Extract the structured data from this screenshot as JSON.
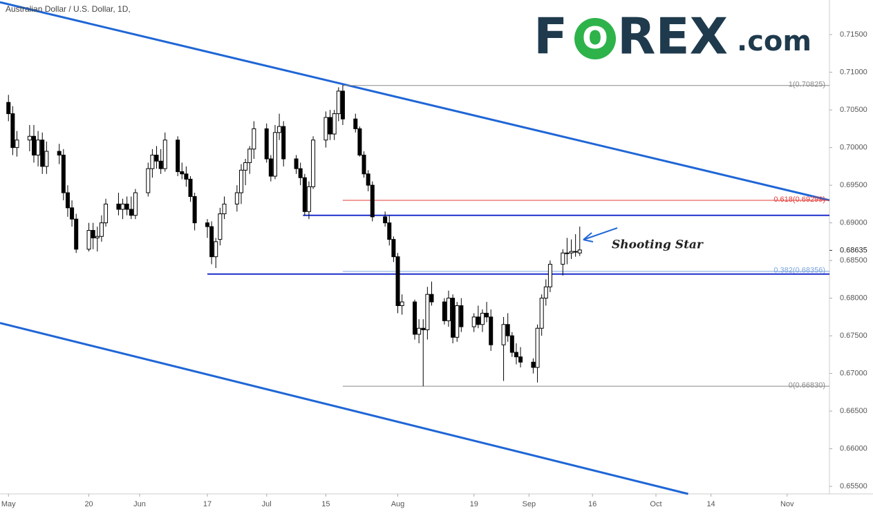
{
  "chart_data": {
    "type": "candlestick",
    "title": "Australian Dollar / U.S. Dollar, 1D,",
    "logo": [
      "F",
      "O",
      "REX",
      ".com"
    ],
    "annotation": "Shooting Star",
    "x": [
      0,
      1,
      2,
      5,
      6,
      7,
      8,
      9,
      12,
      13,
      14,
      15,
      16,
      19,
      20,
      21,
      22,
      23,
      26,
      27,
      28,
      29,
      30,
      33,
      34,
      35,
      36,
      37,
      40,
      41,
      42,
      43,
      44,
      47,
      48,
      49,
      50,
      51,
      54,
      55,
      56,
      57,
      58,
      61,
      62,
      63,
      64,
      65,
      68,
      69,
      70,
      71,
      72,
      75,
      76,
      77,
      78,
      79,
      82,
      83,
      84,
      85,
      86,
      89,
      90,
      91,
      92,
      93,
      96,
      97,
      98,
      99,
      100,
      103,
      104,
      105,
      106,
      107,
      110,
      111,
      112,
      113,
      114,
      117,
      118,
      119,
      120,
      121,
      124,
      125,
      126,
      127,
      128,
      131,
      132,
      133,
      134,
      135
    ],
    "open": [
      0.706,
      0.7045,
      0.7,
      0.701,
      0.7015,
      0.699,
      0.701,
      0.6975,
      0.6995,
      0.699,
      0.694,
      0.692,
      0.6905,
      0.6865,
      0.689,
      0.688,
      0.6882,
      0.69,
      0.6925,
      0.6918,
      0.6925,
      0.6918,
      0.691,
      0.694,
      0.6972,
      0.699,
      0.6982,
      0.6972,
      0.701,
      0.6968,
      0.6965,
      0.6958,
      0.6935,
      0.69,
      0.6895,
      0.6855,
      0.6878,
      0.6912,
      0.6925,
      0.694,
      0.697,
      0.698,
      0.6998,
      0.7025,
      0.6985,
      0.6962,
      0.702,
      0.7028,
      0.6985,
      0.6972,
      0.696,
      0.6915,
      0.6948,
      0.701,
      0.704,
      0.7018,
      0.7045,
      0.7075,
      0.7038,
      0.7025,
      0.699,
      0.6965,
      0.695,
      0.6908,
      0.69,
      0.6878,
      0.6855,
      0.679,
      0.6795,
      0.6752,
      0.676,
      0.6758,
      0.6805,
      0.6795,
      0.677,
      0.68,
      0.6748,
      0.679,
      0.6762,
      0.6775,
      0.6765,
      0.678,
      0.6775,
      0.6738,
      0.6765,
      0.675,
      0.6728,
      0.6722,
      0.6715,
      0.6708,
      0.676,
      0.68,
      0.6815,
      0.6845,
      0.686,
      0.686,
      0.6862,
      0.686
    ],
    "high": [
      0.707,
      0.7055,
      0.7022,
      0.703,
      0.703,
      0.7022,
      0.702,
      0.7008,
      0.7005,
      0.6998,
      0.695,
      0.693,
      0.6912,
      0.69,
      0.69,
      0.6895,
      0.691,
      0.6932,
      0.694,
      0.6932,
      0.6935,
      0.6935,
      0.6945,
      0.698,
      0.6998,
      0.7002,
      0.6998,
      0.702,
      0.7015,
      0.698,
      0.6975,
      0.6962,
      0.694,
      0.6905,
      0.6902,
      0.688,
      0.692,
      0.6935,
      0.695,
      0.6978,
      0.6985,
      0.7002,
      0.7035,
      0.7032,
      0.699,
      0.703,
      0.7045,
      0.7035,
      0.699,
      0.698,
      0.6965,
      0.6955,
      0.7015,
      0.7048,
      0.705,
      0.705,
      0.708,
      0.7083,
      0.7045,
      0.7028,
      0.6995,
      0.697,
      0.6955,
      0.6915,
      0.691,
      0.6882,
      0.686,
      0.6805,
      0.6798,
      0.6772,
      0.6772,
      0.6815,
      0.6822,
      0.68,
      0.681,
      0.6805,
      0.6795,
      0.68,
      0.678,
      0.679,
      0.6785,
      0.6795,
      0.6785,
      0.6775,
      0.678,
      0.6755,
      0.674,
      0.6735,
      0.672,
      0.6765,
      0.6805,
      0.6825,
      0.685,
      0.6865,
      0.688,
      0.6878,
      0.6885,
      0.6895
    ],
    "low": [
      0.7035,
      0.699,
      0.6988,
      0.6995,
      0.698,
      0.6975,
      0.6965,
      0.6965,
      0.6978,
      0.693,
      0.6908,
      0.6895,
      0.686,
      0.6862,
      0.6865,
      0.6862,
      0.6875,
      0.6895,
      0.691,
      0.6905,
      0.691,
      0.6905,
      0.6905,
      0.6935,
      0.696,
      0.6972,
      0.6965,
      0.6968,
      0.6962,
      0.6958,
      0.6948,
      0.6928,
      0.689,
      0.688,
      0.6845,
      0.684,
      0.687,
      0.6905,
      0.6915,
      0.6925,
      0.695,
      0.6965,
      0.6985,
      0.698,
      0.6955,
      0.6958,
      0.701,
      0.6975,
      0.6965,
      0.695,
      0.691,
      0.6905,
      0.6945,
      0.7,
      0.701,
      0.701,
      0.7035,
      0.703,
      0.702,
      0.6988,
      0.696,
      0.6942,
      0.6902,
      0.6895,
      0.687,
      0.6848,
      0.678,
      0.6778,
      0.6745,
      0.674,
      0.6683,
      0.6745,
      0.679,
      0.6765,
      0.6762,
      0.674,
      0.6742,
      0.6755,
      0.6755,
      0.676,
      0.6755,
      0.6768,
      0.673,
      0.669,
      0.6742,
      0.6722,
      0.6712,
      0.6708,
      0.67,
      0.6688,
      0.675,
      0.679,
      0.6808,
      0.683,
      0.6845,
      0.6852,
      0.6855,
      0.6856
    ],
    "close": [
      0.7045,
      0.7,
      0.701,
      0.7015,
      0.699,
      0.701,
      0.6975,
      0.6995,
      0.699,
      0.694,
      0.692,
      0.6905,
      0.6865,
      0.689,
      0.688,
      0.6882,
      0.69,
      0.6925,
      0.6918,
      0.6925,
      0.6918,
      0.691,
      0.694,
      0.6972,
      0.699,
      0.6982,
      0.6972,
      0.701,
      0.6968,
      0.6965,
      0.6958,
      0.6935,
      0.69,
      0.6895,
      0.6855,
      0.6875,
      0.6912,
      0.6925,
      0.694,
      0.697,
      0.698,
      0.6998,
      0.7025,
      0.6985,
      0.6962,
      0.702,
      0.7028,
      0.6985,
      0.6972,
      0.696,
      0.6915,
      0.6948,
      0.701,
      0.704,
      0.7018,
      0.7045,
      0.7075,
      0.7038,
      0.7025,
      0.699,
      0.6965,
      0.695,
      0.6908,
      0.69,
      0.6878,
      0.6855,
      0.679,
      0.6795,
      0.6752,
      0.676,
      0.6758,
      0.6805,
      0.6795,
      0.677,
      0.68,
      0.6748,
      0.679,
      0.6762,
      0.6775,
      0.6765,
      0.678,
      0.6775,
      0.6738,
      0.6765,
      0.675,
      0.6728,
      0.6722,
      0.6715,
      0.6708,
      0.676,
      0.68,
      0.6815,
      0.6845,
      0.686,
      0.686,
      0.6862,
      0.6862,
      0.6864
    ],
    "up_color": "#ffffff",
    "down_color": "#000000",
    "xlim": [
      -2,
      194
    ],
    "ylim": [
      0.654,
      0.7196
    ],
    "xticks": [
      {
        "value": 0,
        "label": "May"
      },
      {
        "value": 19,
        "label": "20"
      },
      {
        "value": 31,
        "label": "Jun"
      },
      {
        "value": 47,
        "label": "17"
      },
      {
        "value": 61,
        "label": "Jul"
      },
      {
        "value": 75,
        "label": "15"
      },
      {
        "value": 92,
        "label": "Aug"
      },
      {
        "value": 110,
        "label": "19"
      },
      {
        "value": 123,
        "label": "Sep"
      },
      {
        "value": 138,
        "label": "16"
      },
      {
        "value": 153,
        "label": "Oct"
      },
      {
        "value": 166,
        "label": "14"
      },
      {
        "value": 184,
        "label": "Nov"
      }
    ],
    "yticks": [
      {
        "value": 0.655,
        "label": "0.65500"
      },
      {
        "value": 0.66,
        "label": "0.66000"
      },
      {
        "value": 0.665,
        "label": "0.66500"
      },
      {
        "value": 0.67,
        "label": "0.67000"
      },
      {
        "value": 0.675,
        "label": "0.67500"
      },
      {
        "value": 0.68,
        "label": "0.68000"
      },
      {
        "value": 0.685,
        "label": "0.68500"
      },
      {
        "value": 0.69,
        "label": "0.69000"
      },
      {
        "value": 0.695,
        "label": "0.69500"
      },
      {
        "value": 0.7,
        "label": "0.70000"
      },
      {
        "value": 0.705,
        "label": "0.70500"
      },
      {
        "value": 0.71,
        "label": "0.71000"
      },
      {
        "value": 0.715,
        "label": "0.71500"
      }
    ],
    "last_price": 0.68635,
    "fib_start": 79,
    "fib_levels": [
      {
        "value": 0.70825,
        "label": "1(0.70825)",
        "color": "#888888"
      },
      {
        "value": 0.69299,
        "label": "0.618(0.69299)",
        "color": "#e53935"
      },
      {
        "value": 0.68356,
        "label": "0.382(0.68356)",
        "color": "#7aa3dd"
      },
      {
        "value": 0.6683,
        "label": "0(0.66830)",
        "color": "#888888"
      }
    ],
    "levels": [
      {
        "start": 69.6,
        "value": 0.691,
        "color": "#1a2fcc"
      },
      {
        "start": 47,
        "value": 0.6832,
        "color": "#1a2fcc"
      }
    ],
    "trendlines": [
      {
        "x": [
          -2,
          194
        ],
        "y": [
          0.7193,
          0.693
        ],
        "color": "#1f66d6"
      },
      {
        "x": [
          -2,
          160.6
        ],
        "y": [
          0.6767,
          0.654
        ],
        "color": "#1f66d6"
      }
    ]
  }
}
